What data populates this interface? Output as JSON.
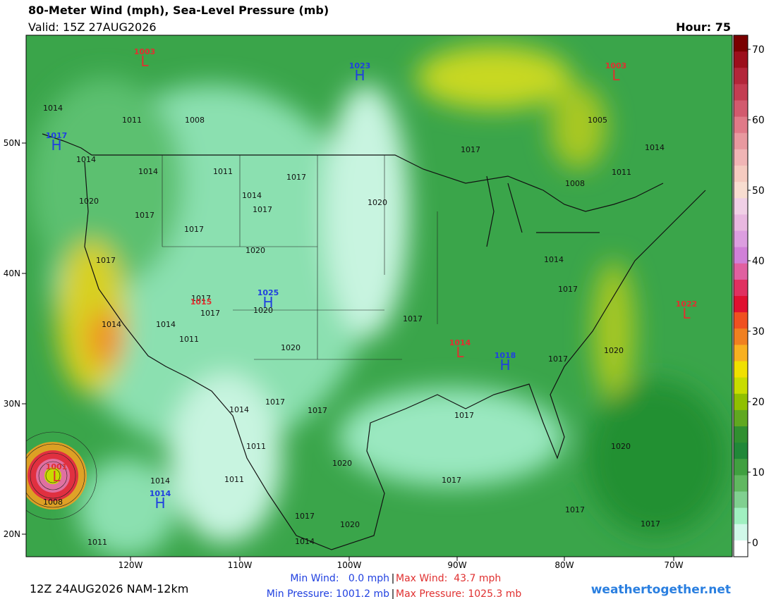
{
  "header": {
    "title": "80-Meter Wind (mph), Sea-Level Pressure (mb)",
    "valid": "Valid: 15Z 27AUG2026",
    "hour": "Hour: 75"
  },
  "map": {
    "lon_labels": [
      "120W",
      "110W",
      "100W",
      "90W",
      "80W",
      "70W"
    ],
    "lat_labels": [
      "50N",
      "40N",
      "30N",
      "20N"
    ],
    "isobar_labels": [
      "1014",
      "1011",
      "1008",
      "1014",
      "1011",
      "1014",
      "1020",
      "1017",
      "1017",
      "1014",
      "1017",
      "1017",
      "1020",
      "1017",
      "1005",
      "1014",
      "1011",
      "1008",
      "1020",
      "1017",
      "1014",
      "1017",
      "1017",
      "1017",
      "1020",
      "1014",
      "1014",
      "1011",
      "1020",
      "1017",
      "1020",
      "1017",
      "1014",
      "1017",
      "1017",
      "1017",
      "1011",
      "1020",
      "1020",
      "1017",
      "1014",
      "1011",
      "1008",
      "1011",
      "1017",
      "1020",
      "1014",
      "1017",
      "1017"
    ],
    "centers": [
      {
        "letter": "L",
        "value": "1003",
        "color": "#e03030"
      },
      {
        "letter": "H",
        "value": "1023",
        "color": "#2040e0"
      },
      {
        "letter": "L",
        "value": "1003",
        "color": "#e03030"
      },
      {
        "letter": "H",
        "value": "1017",
        "color": "#2040e0"
      },
      {
        "letter": "H",
        "value": "1025",
        "color": "#2040e0"
      },
      {
        "value": "1015",
        "color": "#e03030"
      },
      {
        "letter": "L",
        "value": "1022",
        "color": "#e03030"
      },
      {
        "letter": "L",
        "value": "1014",
        "color": "#e03030"
      },
      {
        "letter": "H",
        "value": "1018",
        "color": "#2040e0"
      },
      {
        "letter": "L",
        "value": "1001",
        "color": "#e03030"
      },
      {
        "letter": "H",
        "value": "1014",
        "color": "#2040e0"
      }
    ]
  },
  "colorbar": {
    "colors": [
      "#7a0000",
      "#9c0f1c",
      "#b3263a",
      "#c43d52",
      "#d25a6e",
      "#e07a88",
      "#e8999f",
      "#f0b5b5",
      "#f5cbc0",
      "#f8ddd0",
      "#f0d0e6",
      "#e8b8e0",
      "#dc9ee0",
      "#d080d8",
      "#e060a0",
      "#e03060",
      "#e01030",
      "#f05020",
      "#f08020",
      "#f8b020",
      "#f0e000",
      "#c8dc00",
      "#90c000",
      "#60a820",
      "#309030",
      "#208838",
      "#40a040",
      "#60b860",
      "#80d090",
      "#a0f0c0",
      "#d0f8e8",
      "#ffffff"
    ],
    "ticks": [
      0,
      10,
      20,
      30,
      40,
      50,
      60,
      70
    ]
  },
  "footer": {
    "run": "12Z 24AUG2026 NAM-12km",
    "min_wind": "Min Wind:   0.0 mph",
    "max_wind": "Max Wind:  43.7 mph",
    "min_pressure": "Min Pressure: 1001.2 mb",
    "max_pressure": "Max Pressure: 1025.3 mb",
    "separator": "|",
    "site": "weathertogether.net"
  }
}
